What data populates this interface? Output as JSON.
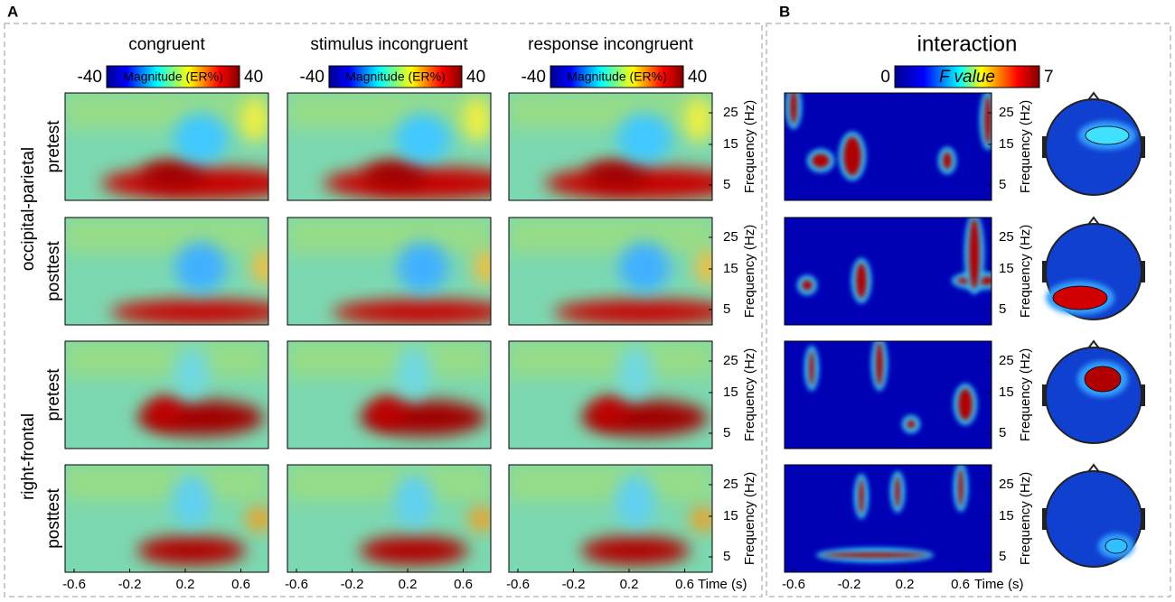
{
  "panels": [
    {
      "label": "A"
    },
    {
      "label": "B"
    }
  ],
  "columns": [
    {
      "title": "congruent",
      "colorbar": {
        "min": -40,
        "label": "Magnitude (ER%)",
        "max": 40
      }
    },
    {
      "title": "stimulus incongruent",
      "colorbar": {
        "min": -40,
        "label": "Magnitude (ER%)",
        "max": 40
      }
    },
    {
      "title": "response incongruent",
      "colorbar": {
        "min": -40,
        "label": "Magnitude (ER%)",
        "max": 40
      }
    },
    {
      "title": "interaction",
      "colorbar": {
        "min": 0,
        "label": "F value",
        "max": 7
      }
    }
  ],
  "row_groups": [
    {
      "label": "occipital-parietal",
      "rows": [
        "pretest",
        "posttest"
      ]
    },
    {
      "label": "right-frontal",
      "rows": [
        "pretest",
        "posttest"
      ]
    }
  ],
  "y_axis": {
    "label": "Frequency (Hz)",
    "ticks": [
      25,
      15,
      5
    ]
  },
  "x_axis": {
    "label": "Time (s)",
    "ticks": [
      -0.6,
      -0.2,
      0.2,
      0.6
    ]
  }
}
